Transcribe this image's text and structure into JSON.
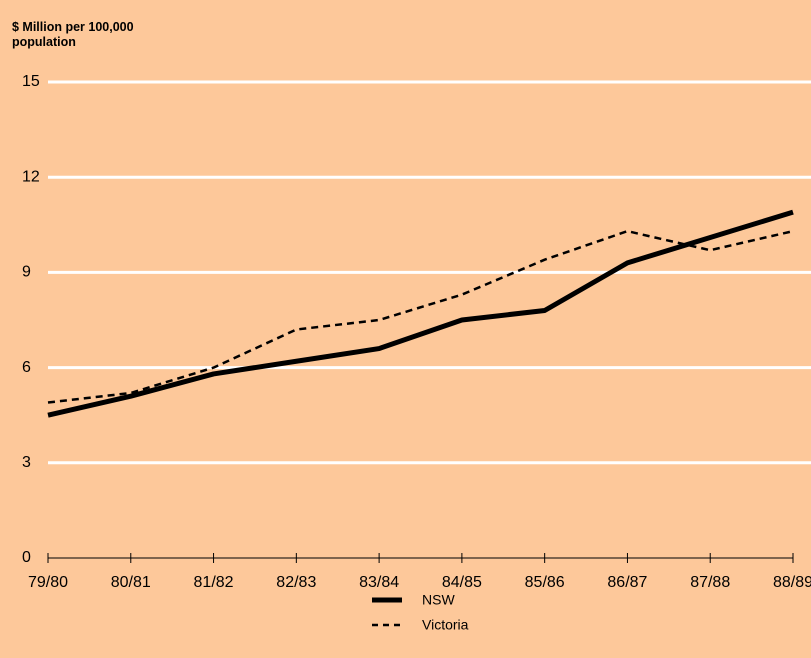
{
  "chart_data": {
    "type": "line",
    "title": "$ Million per 100,000 population",
    "categories": [
      "79/80",
      "80/81",
      "81/82",
      "82/83",
      "83/84",
      "84/85",
      "85/86",
      "86/87",
      "87/88",
      "88/89"
    ],
    "series": [
      {
        "name": "NSW",
        "color": "#000000",
        "line_style": "solid",
        "line_width": 5,
        "values": [
          4.5,
          5.1,
          5.8,
          6.2,
          6.6,
          7.5,
          7.8,
          9.3,
          10.1,
          10.9
        ]
      },
      {
        "name": "Victoria",
        "color": "#000000",
        "line_style": "dashed",
        "line_width": 2.5,
        "values": [
          4.9,
          5.2,
          6.0,
          7.2,
          7.5,
          8.3,
          9.4,
          10.3,
          9.7,
          10.3
        ]
      }
    ],
    "ylim": [
      0,
      15
    ],
    "yticks": [
      0,
      3,
      6,
      9,
      12,
      15
    ],
    "grid": true,
    "grid_color": "#ffffff",
    "legend": "bottom"
  }
}
